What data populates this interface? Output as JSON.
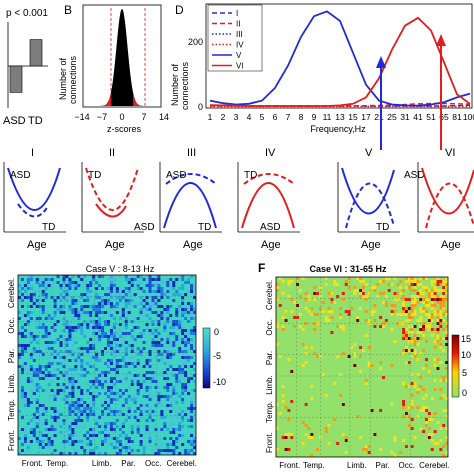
{
  "colors": {
    "blue": "#1f2bd6",
    "red": "#e21d1d",
    "bar_gray": "#7d7d7d",
    "hist_black": "#000000",
    "hist_red": "#e02020"
  },
  "panelA": {
    "pvalue": "p < 0.001",
    "labels": [
      "ASD",
      "TD"
    ],
    "chart_data": {
      "type": "bar",
      "categories": [
        "ASD",
        "TD"
      ],
      "values": [
        -0.6,
        0.6
      ],
      "ylim": [
        -1,
        1
      ]
    }
  },
  "panelB": {
    "letter": "B",
    "ylabel_line1": "Number of",
    "ylabel_line2": "connections",
    "xlabel": "z-scores",
    "ticks": [
      "−14",
      "−7",
      "0",
      "7",
      "14"
    ],
    "chart_data": {
      "type": "bar",
      "x": [
        -14,
        -7,
        0,
        7,
        14
      ],
      "thresholds": [
        -4,
        4
      ],
      "xlim": [
        -14,
        14
      ]
    }
  },
  "panelD": {
    "letter": "D",
    "ylabel_line1": "Number of",
    "ylabel_line2": "connections",
    "xlabel": "Frequency,Hz",
    "yticks": [
      "0",
      "200"
    ],
    "xticks": [
      "1",
      "2",
      "3",
      "4",
      "5",
      "6",
      "7",
      "8",
      "9",
      "11",
      "13",
      "15",
      "17",
      "21",
      "25",
      "31",
      "41",
      "51",
      "65",
      "81",
      "100"
    ],
    "legend": [
      {
        "label": "I",
        "color": "#1f2bd6",
        "style": "dashed"
      },
      {
        "label": "II",
        "color": "#e21d1d",
        "style": "dashed"
      },
      {
        "label": "III",
        "color": "#1f2bd6",
        "style": "dotted"
      },
      {
        "label": "IV",
        "color": "#e21d1d",
        "style": "dotted"
      },
      {
        "label": "V",
        "color": "#1f2bd6",
        "style": "solid"
      },
      {
        "label": "VI",
        "color": "#e21d1d",
        "style": "solid"
      }
    ],
    "chart_data": {
      "type": "line",
      "categories": [
        "1",
        "2",
        "3",
        "4",
        "5",
        "6",
        "7",
        "8",
        "9",
        "11",
        "13",
        "15",
        "17",
        "21",
        "25",
        "31",
        "41",
        "51",
        "65",
        "81",
        "100"
      ],
      "ylim": [
        0,
        320
      ],
      "series": [
        {
          "name": "I",
          "values": [
            5,
            4,
            4,
            3,
            3,
            3,
            3,
            3,
            3,
            3,
            3,
            3,
            3,
            3,
            3,
            3,
            3,
            3,
            3,
            4,
            6
          ]
        },
        {
          "name": "II",
          "values": [
            3,
            3,
            3,
            3,
            3,
            3,
            3,
            3,
            3,
            3,
            3,
            3,
            4,
            5,
            6,
            8,
            10,
            11,
            11,
            10,
            9
          ]
        },
        {
          "name": "III",
          "values": [
            2,
            2,
            2,
            2,
            2,
            2,
            2,
            2,
            2,
            2,
            2,
            2,
            2,
            2,
            2,
            2,
            2,
            2,
            2,
            2,
            2
          ]
        },
        {
          "name": "IV",
          "values": [
            2,
            2,
            2,
            2,
            2,
            2,
            2,
            2,
            2,
            2,
            2,
            2,
            2,
            2,
            2,
            2,
            2,
            2,
            2,
            2,
            2
          ]
        },
        {
          "name": "V",
          "values": [
            20,
            12,
            8,
            10,
            20,
            60,
            130,
            220,
            285,
            300,
            270,
            170,
            70,
            20,
            8,
            5,
            4,
            8,
            15,
            30,
            42
          ]
        },
        {
          "name": "VI",
          "values": [
            6,
            5,
            4,
            3,
            3,
            3,
            3,
            3,
            3,
            3,
            5,
            10,
            30,
            90,
            180,
            255,
            280,
            240,
            140,
            40,
            10
          ]
        }
      ]
    }
  },
  "panelC": {
    "cases": [
      {
        "numeral": "I",
        "top": "ASD",
        "bottom": "TD",
        "color": "#1f2bd6",
        "upper": "solid",
        "lower": "dashed",
        "shape": "u"
      },
      {
        "numeral": "II",
        "top": "TD",
        "bottom": "ASD",
        "color": "#e21d1d",
        "upper": "dashed",
        "lower": "solid",
        "shape": "u"
      },
      {
        "numeral": "III",
        "top": "ASD",
        "bottom": "TD",
        "color": "#1f2bd6",
        "upper": "dashed",
        "lower": "solid",
        "shape": "n"
      },
      {
        "numeral": "IV",
        "top": "TD",
        "bottom": "ASD",
        "color": "#e21d1d",
        "upper": "dashed",
        "lower": "solid",
        "shape": "n"
      },
      {
        "numeral": "V",
        "top": "ASD",
        "bottom": "TD",
        "color": "#1f2bd6",
        "upper": "solid",
        "lower": "dashed",
        "shape": "x"
      },
      {
        "numeral": "VI",
        "top": "",
        "bottom": "",
        "color": "#e21d1d",
        "upper": "solid",
        "lower": "dashed",
        "shape": "x"
      }
    ],
    "xlabel": "Age"
  },
  "panelE": {
    "title": "Case V : 8-13 Hz",
    "colorbar_ticks": [
      "0",
      "-5",
      "-10"
    ],
    "xlabels": [
      "Front.",
      "Temp.",
      "Limb.",
      "Par.",
      "Occ.",
      "Cerebel."
    ],
    "ylabels": [
      "Cerebel.",
      "Occ.",
      "Par.",
      "Limb.",
      "Temp.",
      "Front."
    ]
  },
  "panelF": {
    "letter": "F",
    "title": "Case VI : 31-65 Hz",
    "colorbar_ticks": [
      "15",
      "10",
      "5",
      "0"
    ],
    "xlabels": [
      "Front.",
      "Temp.",
      "Limb.",
      "Par.",
      "Occ.",
      "Cerebel."
    ],
    "ylabels": [
      "Cerebel.",
      "Occ.",
      "Par.",
      "Limb.",
      "Temp.",
      "Front."
    ]
  }
}
